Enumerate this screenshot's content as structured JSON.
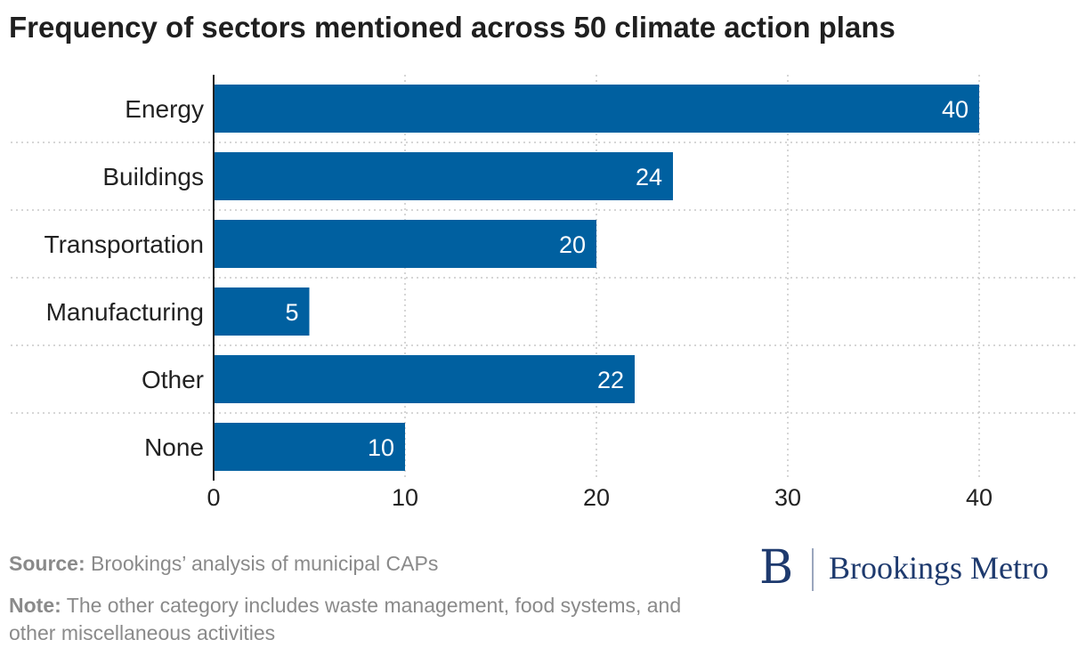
{
  "title": "Frequency of sectors mentioned across 50 climate action plans",
  "chart_data": {
    "type": "bar",
    "orientation": "horizontal",
    "categories": [
      "Energy",
      "Buildings",
      "Transportation",
      "Manufacturing",
      "Other",
      "None"
    ],
    "values": [
      40,
      24,
      20,
      5,
      22,
      10
    ],
    "xlim": [
      0,
      40
    ],
    "xticks": [
      0,
      10,
      20,
      30,
      40
    ],
    "bar_color": "#0060a0",
    "grid": true,
    "data_labels": true
  },
  "footer": {
    "source_label": "Source:",
    "source_text": "Brookings’ analysis of municipal CAPs",
    "note_label": "Note:",
    "note_text": "The other category includes waste management, food systems, and other miscellaneous activities"
  },
  "logo": {
    "mark": "B",
    "text": "Brookings Metro",
    "color": "#1e3a6e"
  }
}
